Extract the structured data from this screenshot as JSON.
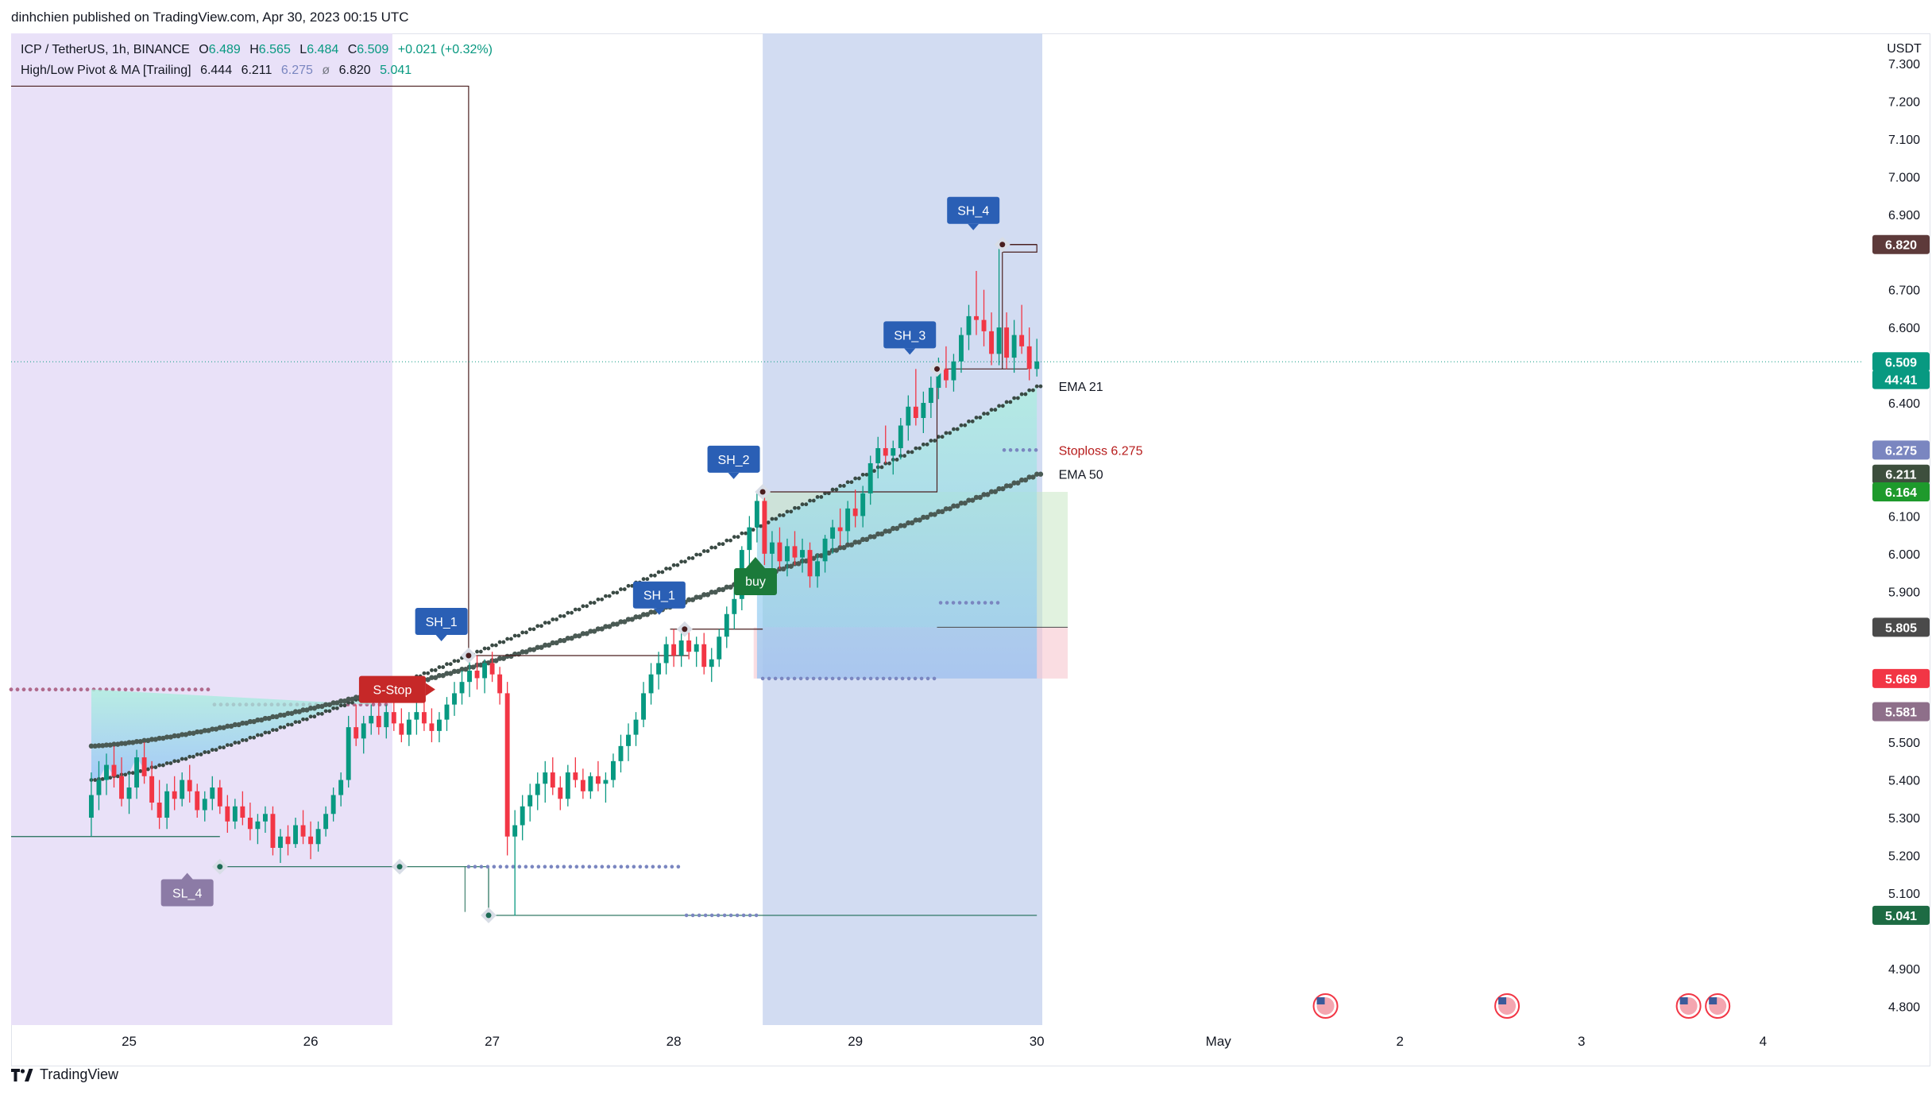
{
  "publisher_line": "dinhchien published on TradingView.com, Apr 30, 2023 00:15 UTC",
  "legend": {
    "symbol": "ICP / TetherUS, 1h, BINANCE",
    "open_label": "O",
    "open": "6.489",
    "high_label": "H",
    "high": "6.565",
    "low_label": "L",
    "low": "6.484",
    "close_label": "C",
    "close": "6.509",
    "change": "+0.021 (+0.32%)",
    "indicator_name": "High/Low Pivot & MA [Trailing]",
    "indicator_values": [
      "6.444",
      "6.211",
      "6.275",
      "ø",
      "6.820",
      "5.041"
    ]
  },
  "footer_brand": "TradingView",
  "colors": {
    "up": "#089981",
    "down": "#f23645",
    "pivot_label": "#2962ff",
    "sh_label_bg": "#2962ff",
    "sl_label_bg": "#8c7ba6",
    "buy_bg": "#1b7a3a",
    "stop_bg": "#c62828",
    "session_purple": "#e9e1f8",
    "session_blue": "#d2dcf2"
  },
  "chart_data": {
    "type": "candlestick",
    "y_axis_unit": "USDT",
    "ylim": [
      4.75,
      7.38
    ],
    "y_ticks": [
      "7.300",
      "7.200",
      "7.100",
      "7.000",
      "6.900",
      "6.700",
      "6.600",
      "6.400",
      "6.100",
      "6.000",
      "5.900",
      "5.500",
      "5.400",
      "5.300",
      "5.200",
      "5.100",
      "4.900",
      "4.800"
    ],
    "x_ticks": [
      "25",
      "26",
      "27",
      "28",
      "29",
      "30",
      "May",
      "2",
      "3",
      "4"
    ],
    "x_tick_days": [
      25,
      26,
      27,
      28,
      29,
      30,
      31,
      32,
      33,
      34
    ],
    "xlim_days": [
      24.35,
      34.55
    ],
    "last_bar_day": 30.0,
    "candles": [
      [
        5.3,
        5.42,
        5.25,
        5.36
      ],
      [
        5.36,
        5.45,
        5.32,
        5.4
      ],
      [
        5.4,
        5.47,
        5.36,
        5.44
      ],
      [
        5.44,
        5.49,
        5.38,
        5.41
      ],
      [
        5.41,
        5.46,
        5.33,
        5.35
      ],
      [
        5.35,
        5.42,
        5.31,
        5.38
      ],
      [
        5.38,
        5.48,
        5.35,
        5.46
      ],
      [
        5.46,
        5.5,
        5.39,
        5.41
      ],
      [
        5.41,
        5.45,
        5.32,
        5.34
      ],
      [
        5.34,
        5.4,
        5.27,
        5.3
      ],
      [
        5.3,
        5.39,
        5.27,
        5.37
      ],
      [
        5.37,
        5.41,
        5.32,
        5.35
      ],
      [
        5.35,
        5.42,
        5.33,
        5.4
      ],
      [
        5.4,
        5.44,
        5.34,
        5.37
      ],
      [
        5.37,
        5.39,
        5.3,
        5.32
      ],
      [
        5.32,
        5.37,
        5.29,
        5.35
      ],
      [
        5.35,
        5.41,
        5.32,
        5.38
      ],
      [
        5.38,
        5.4,
        5.31,
        5.33
      ],
      [
        5.33,
        5.36,
        5.26,
        5.29
      ],
      [
        5.29,
        5.35,
        5.27,
        5.33
      ],
      [
        5.33,
        5.37,
        5.28,
        5.3
      ],
      [
        5.3,
        5.34,
        5.24,
        5.27
      ],
      [
        5.27,
        5.31,
        5.23,
        5.29
      ],
      [
        5.29,
        5.33,
        5.26,
        5.31
      ],
      [
        5.31,
        5.33,
        5.2,
        5.22
      ],
      [
        5.22,
        5.27,
        5.18,
        5.25
      ],
      [
        5.25,
        5.28,
        5.2,
        5.23
      ],
      [
        5.23,
        5.3,
        5.22,
        5.28
      ],
      [
        5.28,
        5.32,
        5.23,
        5.25
      ],
      [
        5.25,
        5.29,
        5.19,
        5.23
      ],
      [
        5.23,
        5.29,
        5.21,
        5.27
      ],
      [
        5.27,
        5.33,
        5.25,
        5.31
      ],
      [
        5.31,
        5.38,
        5.29,
        5.36
      ],
      [
        5.36,
        5.42,
        5.33,
        5.4
      ],
      [
        5.4,
        5.57,
        5.38,
        5.54
      ],
      [
        5.54,
        5.6,
        5.49,
        5.51
      ],
      [
        5.51,
        5.57,
        5.47,
        5.55
      ],
      [
        5.55,
        5.6,
        5.52,
        5.57
      ],
      [
        5.57,
        5.62,
        5.52,
        5.54
      ],
      [
        5.54,
        5.6,
        5.51,
        5.58
      ],
      [
        5.58,
        5.63,
        5.53,
        5.55
      ],
      [
        5.55,
        5.59,
        5.5,
        5.52
      ],
      [
        5.52,
        5.58,
        5.49,
        5.56
      ],
      [
        5.56,
        5.61,
        5.52,
        5.58
      ],
      [
        5.58,
        5.62,
        5.53,
        5.55
      ],
      [
        5.55,
        5.59,
        5.5,
        5.53
      ],
      [
        5.53,
        5.58,
        5.5,
        5.56
      ],
      [
        5.56,
        5.62,
        5.53,
        5.6
      ],
      [
        5.6,
        5.66,
        5.57,
        5.63
      ],
      [
        5.63,
        5.69,
        5.6,
        5.66
      ],
      [
        5.66,
        5.72,
        5.62,
        5.69
      ],
      [
        5.69,
        5.73,
        5.64,
        5.67
      ],
      [
        5.67,
        5.72,
        5.63,
        5.71
      ],
      [
        5.71,
        5.74,
        5.66,
        5.68
      ],
      [
        5.68,
        5.7,
        5.6,
        5.63
      ],
      [
        5.63,
        5.66,
        5.2,
        5.25
      ],
      [
        5.25,
        5.32,
        5.04,
        5.28
      ],
      [
        5.28,
        5.36,
        5.24,
        5.33
      ],
      [
        5.33,
        5.39,
        5.29,
        5.36
      ],
      [
        5.36,
        5.42,
        5.32,
        5.39
      ],
      [
        5.39,
        5.45,
        5.34,
        5.42
      ],
      [
        5.42,
        5.46,
        5.36,
        5.38
      ],
      [
        5.38,
        5.41,
        5.32,
        5.35
      ],
      [
        5.35,
        5.44,
        5.33,
        5.42
      ],
      [
        5.42,
        5.46,
        5.38,
        5.4
      ],
      [
        5.4,
        5.43,
        5.35,
        5.37
      ],
      [
        5.37,
        5.42,
        5.35,
        5.41
      ],
      [
        5.41,
        5.45,
        5.37,
        5.39
      ],
      [
        5.39,
        5.42,
        5.34,
        5.4
      ],
      [
        5.4,
        5.47,
        5.38,
        5.45
      ],
      [
        5.45,
        5.52,
        5.42,
        5.49
      ],
      [
        5.49,
        5.55,
        5.45,
        5.52
      ],
      [
        5.52,
        5.58,
        5.49,
        5.56
      ],
      [
        5.56,
        5.66,
        5.54,
        5.63
      ],
      [
        5.63,
        5.71,
        5.6,
        5.68
      ],
      [
        5.68,
        5.74,
        5.64,
        5.71
      ],
      [
        5.71,
        5.78,
        5.68,
        5.76
      ],
      [
        5.76,
        5.8,
        5.7,
        5.73
      ],
      [
        5.73,
        5.79,
        5.7,
        5.77
      ],
      [
        5.77,
        5.8,
        5.72,
        5.74
      ],
      [
        5.74,
        5.78,
        5.7,
        5.76
      ],
      [
        5.76,
        5.79,
        5.68,
        5.7
      ],
      [
        5.7,
        5.75,
        5.66,
        5.72
      ],
      [
        5.72,
        5.8,
        5.7,
        5.78
      ],
      [
        5.78,
        5.86,
        5.75,
        5.84
      ],
      [
        5.84,
        5.91,
        5.8,
        5.88
      ],
      [
        5.88,
        6.02,
        5.85,
        6.01
      ],
      [
        6.01,
        6.1,
        5.96,
        6.07
      ],
      [
        6.07,
        6.16,
        6.03,
        6.14
      ],
      [
        6.14,
        6.15,
        5.97,
        6.0
      ],
      [
        6.0,
        6.06,
        5.95,
        6.03
      ],
      [
        6.03,
        6.07,
        5.96,
        5.98
      ],
      [
        5.98,
        6.04,
        5.94,
        6.02
      ],
      [
        6.02,
        6.06,
        5.97,
        5.99
      ],
      [
        5.99,
        6.04,
        5.95,
        6.01
      ],
      [
        6.01,
        6.03,
        5.91,
        5.94
      ],
      [
        5.94,
        6.0,
        5.91,
        5.98
      ],
      [
        5.98,
        6.05,
        5.95,
        6.04
      ],
      [
        6.04,
        6.09,
        6.0,
        6.07
      ],
      [
        6.07,
        6.12,
        6.02,
        6.06
      ],
      [
        6.06,
        6.14,
        6.03,
        6.12
      ],
      [
        6.12,
        6.17,
        6.07,
        6.1
      ],
      [
        6.1,
        6.18,
        6.07,
        6.16
      ],
      [
        6.16,
        6.26,
        6.13,
        6.24
      ],
      [
        6.24,
        6.31,
        6.2,
        6.28
      ],
      [
        6.28,
        6.34,
        6.24,
        6.26
      ],
      [
        6.26,
        6.3,
        6.21,
        6.28
      ],
      [
        6.28,
        6.36,
        6.25,
        6.34
      ],
      [
        6.34,
        6.42,
        6.3,
        6.39
      ],
      [
        6.39,
        6.49,
        6.34,
        6.36
      ],
      [
        6.36,
        6.43,
        6.32,
        6.4
      ],
      [
        6.4,
        6.47,
        6.36,
        6.44
      ],
      [
        6.44,
        6.52,
        6.41,
        6.49
      ],
      [
        6.49,
        6.55,
        6.44,
        6.46
      ],
      [
        6.46,
        6.53,
        6.43,
        6.51
      ],
      [
        6.51,
        6.6,
        6.48,
        6.58
      ],
      [
        6.58,
        6.66,
        6.54,
        6.63
      ],
      [
        6.63,
        6.75,
        6.58,
        6.62
      ],
      [
        6.62,
        6.7,
        6.55,
        6.59
      ],
      [
        6.59,
        6.64,
        6.5,
        6.53
      ],
      [
        6.53,
        6.82,
        6.5,
        6.6
      ],
      [
        6.6,
        6.64,
        6.49,
        6.52
      ],
      [
        6.52,
        6.62,
        6.48,
        6.58
      ],
      [
        6.58,
        6.66,
        6.53,
        6.55
      ],
      [
        6.55,
        6.6,
        6.46,
        6.49
      ],
      [
        6.49,
        6.57,
        6.47,
        6.51
      ]
    ],
    "ema21_start": 5.4,
    "ema21_end": 6.444,
    "ema50_start": 5.49,
    "ema50_end": 6.211,
    "series_labels": [
      {
        "text": "EMA 21",
        "value": 6.444
      },
      {
        "text": "EMA 50",
        "value": 6.211
      },
      {
        "text": "Stoploss  6.275",
        "value": 6.275
      }
    ],
    "pivot_labels": [
      {
        "text": "SH_1",
        "day": 26.72,
        "price": 5.73,
        "kind": "high"
      },
      {
        "text": "SH_1",
        "day": 27.92,
        "price": 5.8,
        "kind": "high"
      },
      {
        "text": "SH_2",
        "day": 28.33,
        "price": 6.16,
        "kind": "high"
      },
      {
        "text": "SH_3",
        "day": 29.3,
        "price": 6.49,
        "kind": "high"
      },
      {
        "text": "SH_4",
        "day": 29.65,
        "price": 6.82,
        "kind": "high"
      },
      {
        "text": "SL_4",
        "day": 25.32,
        "price": 5.2,
        "kind": "low"
      }
    ],
    "signals": [
      {
        "text": "S-Stop",
        "day": 26.45,
        "price": 5.64,
        "kind": "stop"
      },
      {
        "text": "buy",
        "day": 28.45,
        "price": 5.93,
        "kind": "buy"
      }
    ],
    "price_badges": [
      {
        "text": "6.820",
        "value": 6.82,
        "bg": "#5d3a3a"
      },
      {
        "text": "6.509",
        "value": 6.509,
        "bg": "#089981"
      },
      {
        "text": "44:41",
        "value": 6.462,
        "bg": "#089981"
      },
      {
        "text": "6.275",
        "value": 6.275,
        "bg": "#7a86c0"
      },
      {
        "text": "6.211",
        "value": 6.211,
        "bg": "#3d4f3d"
      },
      {
        "text": "6.164",
        "value": 6.164,
        "bg": "#1e9a2c"
      },
      {
        "text": "5.805",
        "value": 5.805,
        "bg": "#4a4a4a"
      },
      {
        "text": "5.669",
        "value": 5.669,
        "bg": "#f23645"
      },
      {
        "text": "5.581",
        "value": 5.581,
        "bg": "#8e6f8a"
      },
      {
        "text": "5.041",
        "value": 5.041,
        "bg": "#1d6b43"
      }
    ]
  }
}
